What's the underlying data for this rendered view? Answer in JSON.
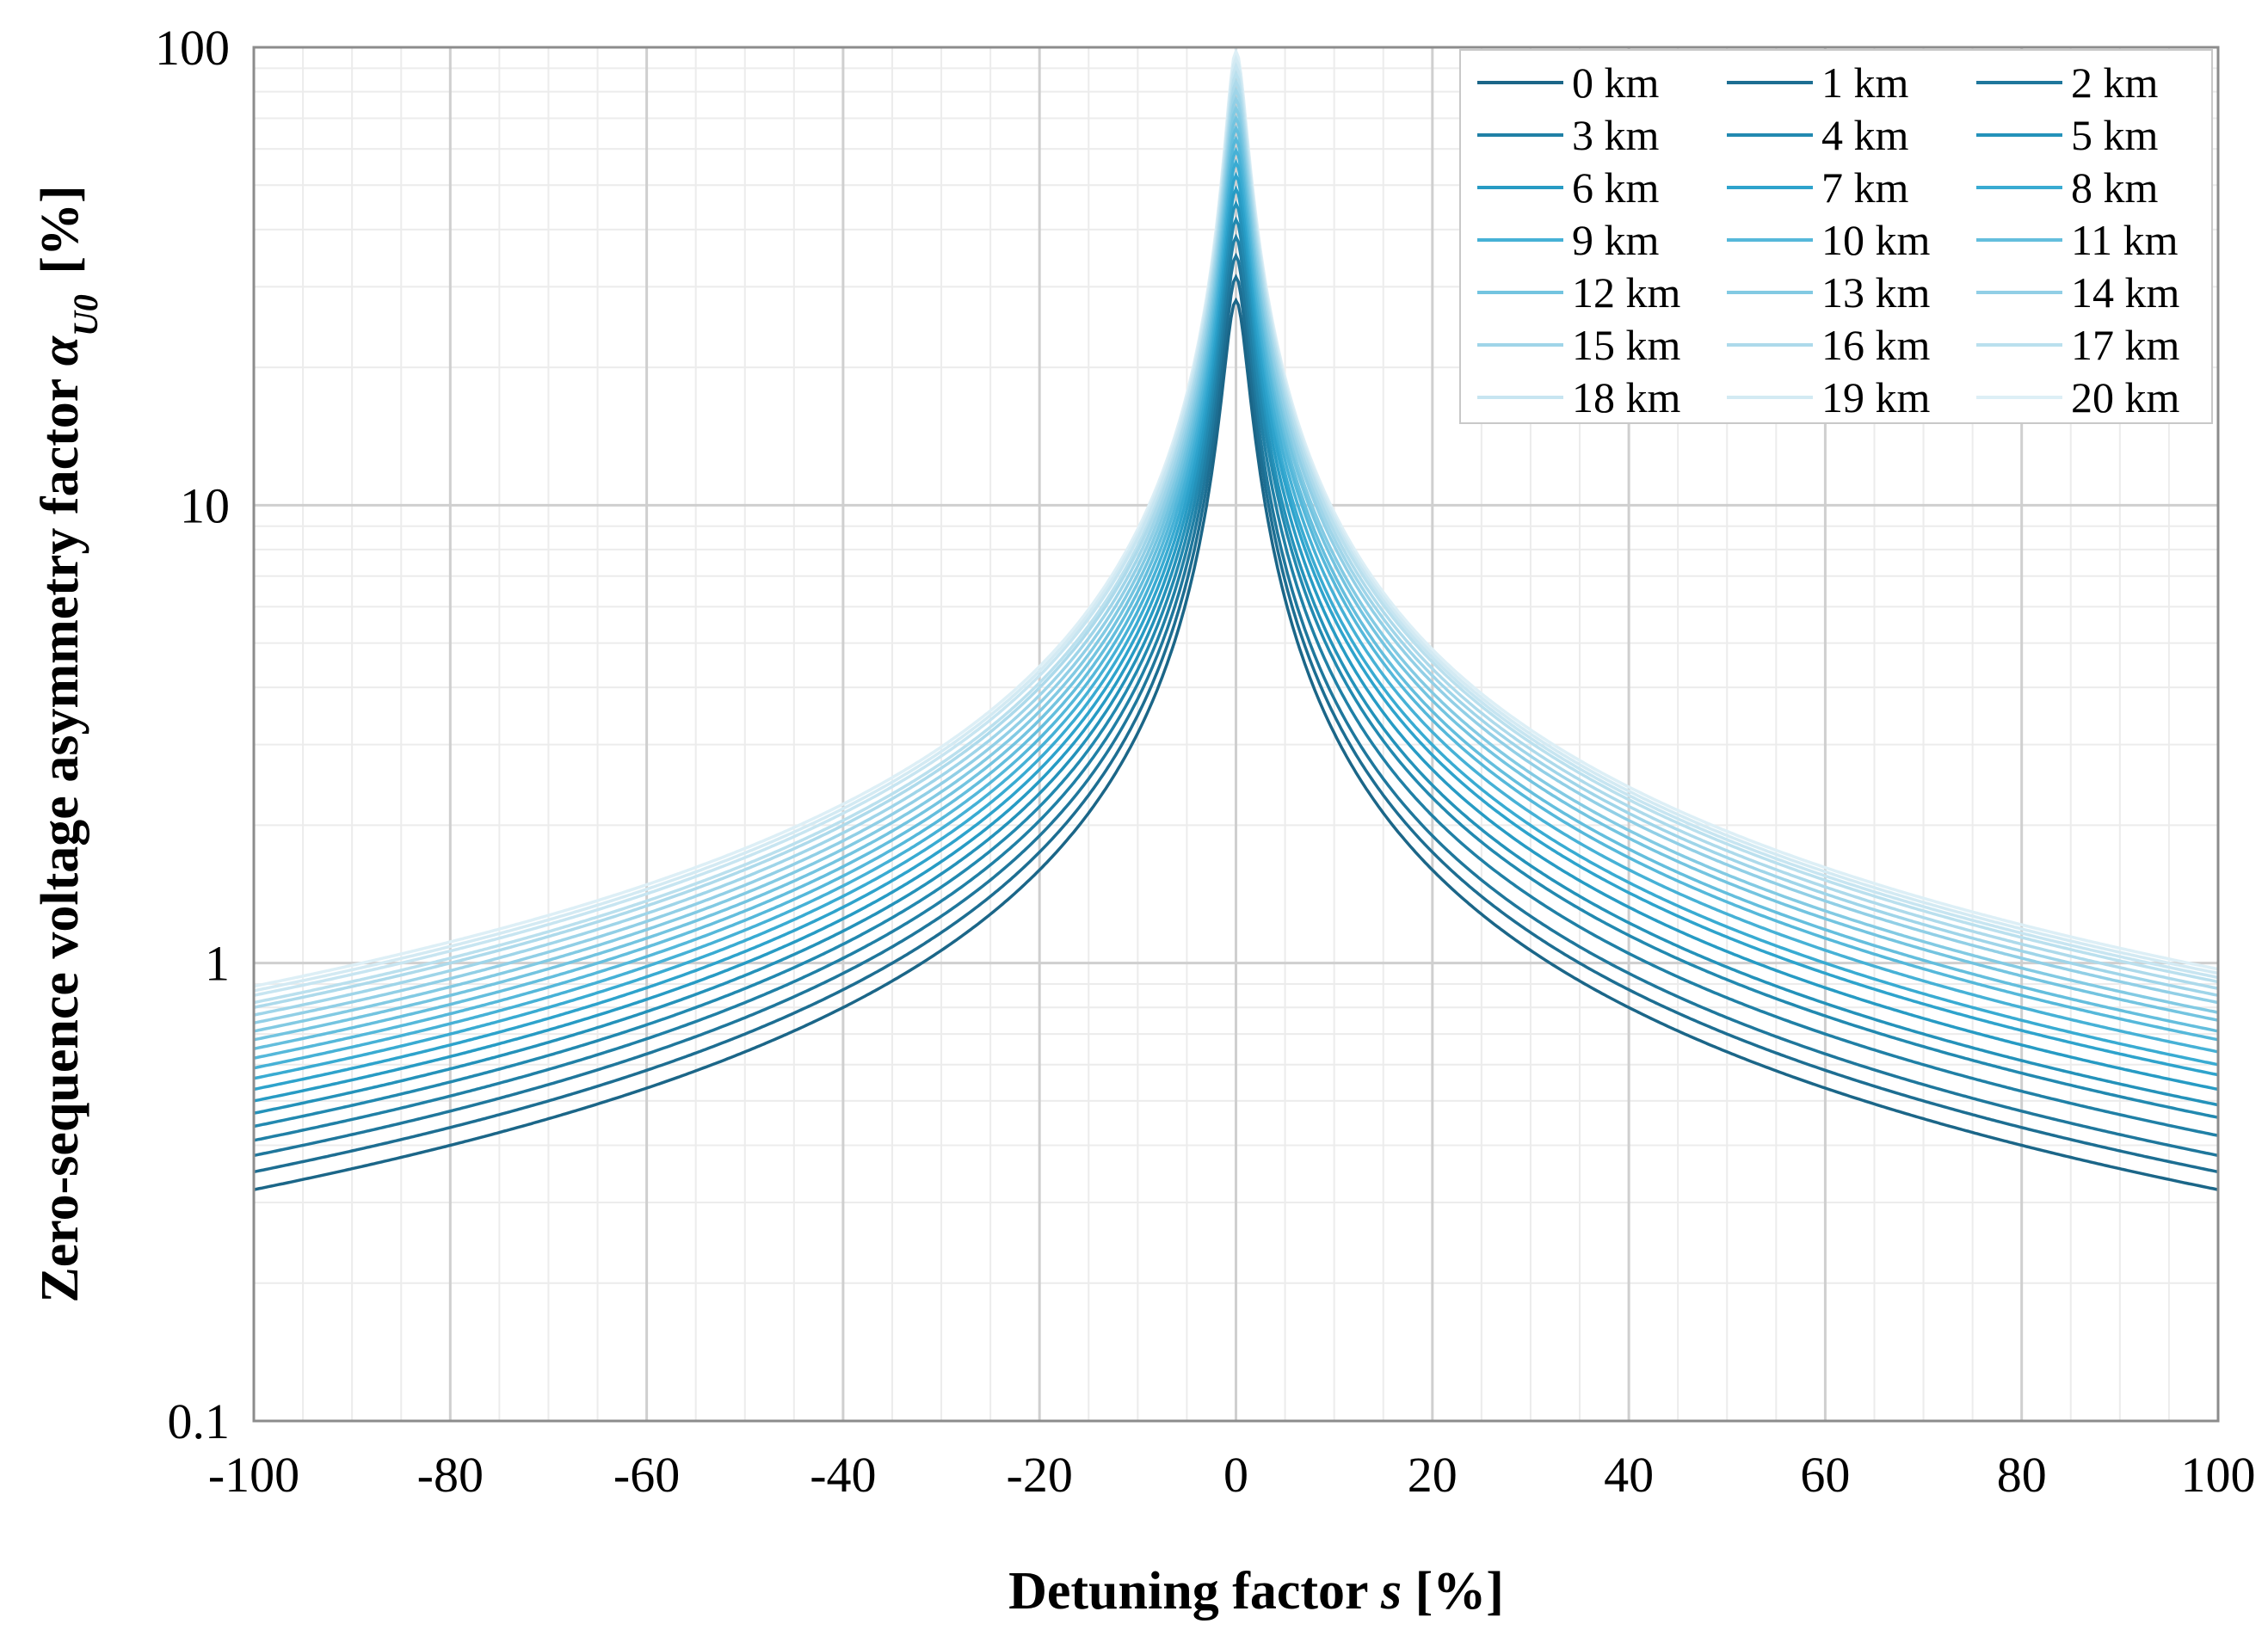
{
  "chart_data": {
    "type": "line",
    "title": "",
    "xlabel": {
      "prefix": "Detuning factor ",
      "variable": "s",
      "suffix": " [%]"
    },
    "ylabel": {
      "prefix": "Zero-sequence  voltage asymmetry  factor ",
      "variable": "α",
      "subscript": "U0",
      "suffix": " [%]"
    },
    "xlim": [
      -100,
      100
    ],
    "ylim": [
      0.1,
      100
    ],
    "yscale": "log",
    "grid": true,
    "legend_position": "top-right",
    "x_ticks": [
      -100,
      -80,
      -60,
      -40,
      -20,
      0,
      20,
      40,
      60,
      80,
      100
    ],
    "x_tick_labels": [
      "-100",
      "-80",
      "-60",
      "-40",
      "-20",
      "0",
      "20",
      "40",
      "60",
      "80",
      "100"
    ],
    "y_ticks": [
      0.1,
      1,
      10,
      100
    ],
    "y_tick_labels": [
      "0.1",
      "1",
      "10",
      "100"
    ],
    "series": [
      {
        "name": "0 km",
        "color": "#1b6688",
        "peak": 28.0,
        "at_minus100": 0.32,
        "at_plus100": 0.32
      },
      {
        "name": "1 km",
        "color": "#1d6e92",
        "peak": 31.5,
        "at_minus100": 0.35,
        "at_plus100": 0.35
      },
      {
        "name": "2 km",
        "color": "#1f779c",
        "peak": 35.0,
        "at_minus100": 0.38,
        "at_plus100": 0.38
      },
      {
        "name": "3 km",
        "color": "#2080a6",
        "peak": 38.5,
        "at_minus100": 0.41,
        "at_plus100": 0.42
      },
      {
        "name": "4 km",
        "color": "#2289b0",
        "peak": 42.0,
        "at_minus100": 0.44,
        "at_plus100": 0.46
      },
      {
        "name": "5 km",
        "color": "#2492ba",
        "peak": 45.5,
        "at_minus100": 0.47,
        "at_plus100": 0.49
      },
      {
        "name": "6 km",
        "color": "#279bc4",
        "peak": 49.0,
        "at_minus100": 0.5,
        "at_plus100": 0.53
      },
      {
        "name": "7 km",
        "color": "#2ea3cc",
        "peak": 52.5,
        "at_minus100": 0.53,
        "at_plus100": 0.57
      },
      {
        "name": "8 km",
        "color": "#39abd2",
        "peak": 56.0,
        "at_minus100": 0.56,
        "at_plus100": 0.6
      },
      {
        "name": "9 km",
        "color": "#46b1d6",
        "peak": 59.5,
        "at_minus100": 0.59,
        "at_plus100": 0.64
      },
      {
        "name": "10 km",
        "color": "#55b8da",
        "peak": 63.0,
        "at_minus100": 0.62,
        "at_plus100": 0.68
      },
      {
        "name": "11 km",
        "color": "#64bedd",
        "peak": 66.5,
        "at_minus100": 0.65,
        "at_plus100": 0.71
      },
      {
        "name": "12 km",
        "color": "#73c4e0",
        "peak": 70.0,
        "at_minus100": 0.68,
        "at_plus100": 0.75
      },
      {
        "name": "13 km",
        "color": "#82cae3",
        "peak": 73.5,
        "at_minus100": 0.71,
        "at_plus100": 0.78
      },
      {
        "name": "14 km",
        "color": "#91cfe6",
        "peak": 77.0,
        "at_minus100": 0.74,
        "at_plus100": 0.82
      },
      {
        "name": "15 km",
        "color": "#9fd5e9",
        "peak": 80.5,
        "at_minus100": 0.77,
        "at_plus100": 0.85
      },
      {
        "name": "16 km",
        "color": "#addaeb",
        "peak": 84.0,
        "at_minus100": 0.8,
        "at_plus100": 0.88
      },
      {
        "name": "17 km",
        "color": "#bae0ee",
        "peak": 87.5,
        "at_minus100": 0.82,
        "at_plus100": 0.91
      },
      {
        "name": "18 km",
        "color": "#c7e5f1",
        "peak": 91.0,
        "at_minus100": 0.85,
        "at_plus100": 0.93
      },
      {
        "name": "19 km",
        "color": "#d3eaf3",
        "peak": 94.5,
        "at_minus100": 0.87,
        "at_plus100": 0.95
      },
      {
        "name": "20 km",
        "color": "#ddeff6",
        "peak": 98.0,
        "at_minus100": 0.89,
        "at_plus100": 0.97
      }
    ]
  }
}
